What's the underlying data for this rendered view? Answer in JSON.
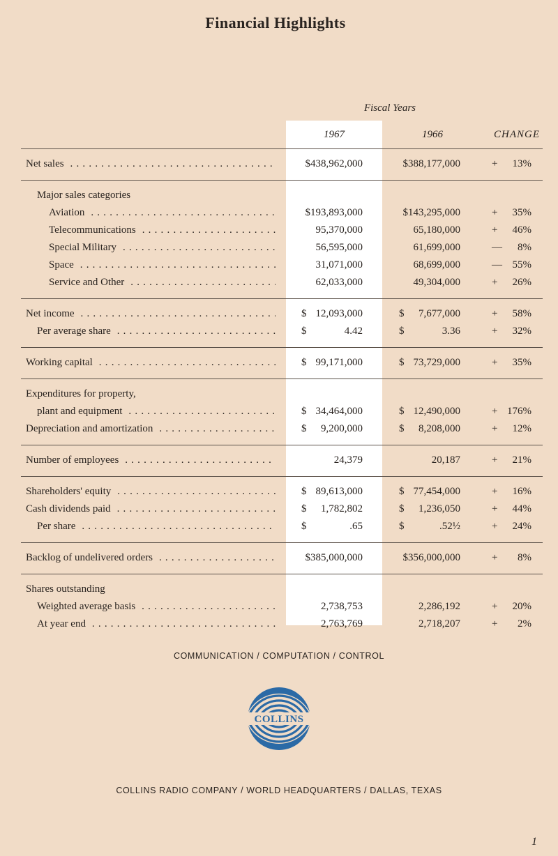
{
  "title": "Financial Highlights",
  "fiscal_years_label": "Fiscal Years",
  "columns": {
    "y1967": "1967",
    "y1966": "1966",
    "change": "CHANGE"
  },
  "highlight_color": "#ffffff",
  "groups": [
    {
      "rows": [
        {
          "label": "Net sales",
          "indent": 0,
          "dots": true,
          "d67": "",
          "v67": "$438,962,000",
          "d66": "",
          "v66": "$388,177,000",
          "sign": "+",
          "pct": "13%"
        }
      ]
    },
    {
      "rows": [
        {
          "label": "Major sales categories",
          "indent": 1,
          "dots": false
        },
        {
          "label": "Aviation",
          "indent": 2,
          "dots": true,
          "d67": "",
          "v67": "$193,893,000",
          "d66": "",
          "v66": "$143,295,000",
          "sign": "+",
          "pct": "35%"
        },
        {
          "label": "Telecommunications",
          "indent": 2,
          "dots": true,
          "d67": "",
          "v67": "95,370,000",
          "d66": "",
          "v66": "65,180,000",
          "sign": "+",
          "pct": "46%"
        },
        {
          "label": "Special Military",
          "indent": 2,
          "dots": true,
          "d67": "",
          "v67": "56,595,000",
          "d66": "",
          "v66": "61,699,000",
          "sign": "—",
          "pct": "8%"
        },
        {
          "label": "Space",
          "indent": 2,
          "dots": true,
          "d67": "",
          "v67": "31,071,000",
          "d66": "",
          "v66": "68,699,000",
          "sign": "—",
          "pct": "55%"
        },
        {
          "label": "Service and Other",
          "indent": 2,
          "dots": true,
          "d67": "",
          "v67": "62,033,000",
          "d66": "",
          "v66": "49,304,000",
          "sign": "+",
          "pct": "26%"
        }
      ]
    },
    {
      "rows": [
        {
          "label": "Net income",
          "indent": 0,
          "dots": true,
          "d67": "$",
          "v67": "12,093,000",
          "d66": "$",
          "v66": "7,677,000",
          "sign": "+",
          "pct": "58%"
        },
        {
          "label": "Per average share",
          "indent": 1,
          "dots": true,
          "d67": "$",
          "v67": "4.42",
          "d66": "$",
          "v66": "3.36",
          "sign": "+",
          "pct": "32%"
        }
      ]
    },
    {
      "rows": [
        {
          "label": "Working capital",
          "indent": 0,
          "dots": true,
          "d67": "$",
          "v67": "99,171,000",
          "d66": "$",
          "v66": "73,729,000",
          "sign": "+",
          "pct": "35%"
        }
      ]
    },
    {
      "rows": [
        {
          "label": "Expenditures for property,",
          "indent": 0,
          "dots": false
        },
        {
          "label": "plant and equipment",
          "indent": 1,
          "dots": true,
          "d67": "$",
          "v67": "34,464,000",
          "d66": "$",
          "v66": "12,490,000",
          "sign": "+",
          "pct": "176%"
        },
        {
          "label": "Depreciation and amortization",
          "indent": 0,
          "dots": true,
          "d67": "$",
          "v67": "9,200,000",
          "d66": "$",
          "v66": "8,208,000",
          "sign": "+",
          "pct": "12%"
        }
      ]
    },
    {
      "rows": [
        {
          "label": "Number of employees",
          "indent": 0,
          "dots": true,
          "d67": "",
          "v67": "24,379",
          "d66": "",
          "v66": "20,187",
          "sign": "+",
          "pct": "21%"
        }
      ]
    },
    {
      "rows": [
        {
          "label": "Shareholders' equity",
          "indent": 0,
          "dots": true,
          "d67": "$",
          "v67": "89,613,000",
          "d66": "$",
          "v66": "77,454,000",
          "sign": "+",
          "pct": "16%"
        },
        {
          "label": "Cash dividends paid",
          "indent": 0,
          "dots": true,
          "d67": "$",
          "v67": "1,782,802",
          "d66": "$",
          "v66": "1,236,050",
          "sign": "+",
          "pct": "44%"
        },
        {
          "label": "Per share",
          "indent": 1,
          "dots": true,
          "d67": "$",
          "v67": ".65",
          "d66": "$",
          "v66": ".52½",
          "sign": "+",
          "pct": "24%"
        }
      ]
    },
    {
      "rows": [
        {
          "label": "Backlog of undelivered orders",
          "indent": 0,
          "dots": true,
          "d67": "",
          "v67": "$385,000,000",
          "d66": "",
          "v66": "$356,000,000",
          "sign": "+",
          "pct": "8%"
        }
      ]
    },
    {
      "rows": [
        {
          "label": "Shares outstanding",
          "indent": 0,
          "dots": false
        },
        {
          "label": "Weighted average basis",
          "indent": 1,
          "dots": true,
          "d67": "",
          "v67": "2,738,753",
          "d66": "",
          "v66": "2,286,192",
          "sign": "+",
          "pct": "20%"
        },
        {
          "label": "At year end",
          "indent": 1,
          "dots": true,
          "d67": "",
          "v67": "2,763,769",
          "d66": "",
          "v66": "2,718,207",
          "sign": "+",
          "pct": "2%"
        }
      ]
    }
  ],
  "tagline": "COMMUNICATION / COMPUTATION / CONTROL",
  "logo": {
    "text": "COLLINS",
    "color": "#2b6aa6"
  },
  "footer": "COLLINS RADIO COMPANY / WORLD HEADQUARTERS / DALLAS, TEXAS",
  "page_number": "1"
}
